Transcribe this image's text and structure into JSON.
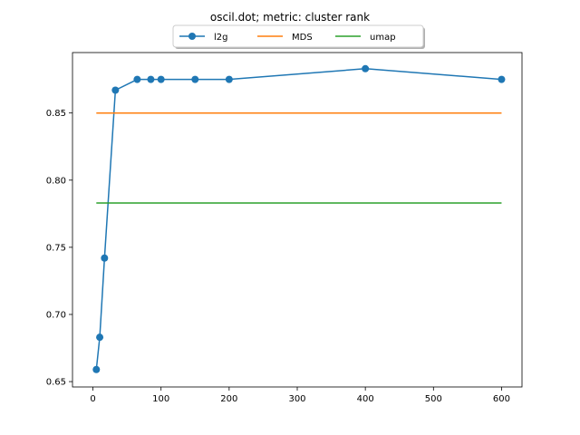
{
  "chart_data": {
    "type": "line",
    "title": "oscil.dot; metric: cluster rank",
    "xlabel": "",
    "ylabel": "",
    "xlim": [
      -30,
      630
    ],
    "ylim": [
      0.646,
      0.895
    ],
    "xticks": [
      0,
      100,
      200,
      300,
      400,
      500,
      600
    ],
    "yticks": [
      0.65,
      0.7,
      0.75,
      0.8,
      0.85
    ],
    "ytick_labels": [
      "0.65",
      "0.70",
      "0.75",
      "0.80",
      "0.85"
    ],
    "xtick_labels": [
      "0",
      "100",
      "200",
      "300",
      "400",
      "500",
      "600"
    ],
    "grid": false,
    "legend_position": "top-center",
    "series": [
      {
        "name": "l2g",
        "color": "#1f77b4",
        "marker": "circle",
        "x": [
          5,
          10,
          17,
          33,
          65,
          85,
          100,
          150,
          200,
          400,
          600
        ],
        "y": [
          0.659,
          0.683,
          0.742,
          0.867,
          0.875,
          0.875,
          0.875,
          0.875,
          0.875,
          0.883,
          0.875
        ]
      },
      {
        "name": "MDS",
        "color": "#ff7f0e",
        "marker": "none",
        "x": [
          5,
          600
        ],
        "y": [
          0.85,
          0.85
        ]
      },
      {
        "name": "umap",
        "color": "#2ca02c",
        "marker": "none",
        "x": [
          5,
          600
        ],
        "y": [
          0.783,
          0.783
        ]
      }
    ]
  }
}
